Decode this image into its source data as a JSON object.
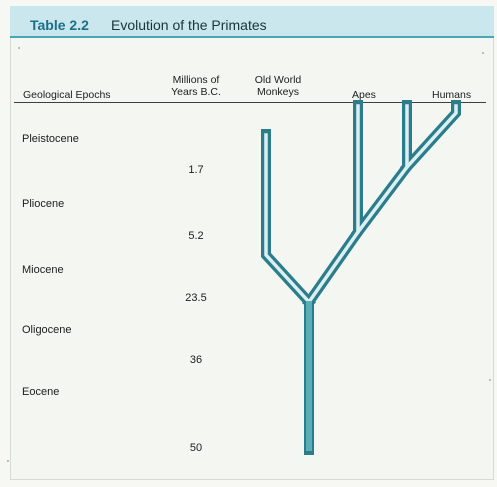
{
  "title": {
    "label": "Table 2.2",
    "text": "Evolution of the Primates"
  },
  "columns": {
    "epochs": "Geological Epochs",
    "years_line1": "Millions of",
    "years_line2": "Years B.C.",
    "old_world_line1": "Old World",
    "old_world_line2": "Monkeys",
    "apes": "Apes",
    "humans": "Humans"
  },
  "epochs": [
    "Pleistocene",
    "Pliocene",
    "Miocene",
    "Oligocene",
    "Eocene"
  ],
  "years": [
    "1.7",
    "5.2",
    "23.5",
    "36",
    "50"
  ],
  "colors": {
    "accent": "#47a8b4",
    "title_background": "#c9e7ec",
    "title_label": "#1b6f89",
    "tree_fill": "#5aaeb8",
    "tree_shadow": "#2c7d8b"
  }
}
